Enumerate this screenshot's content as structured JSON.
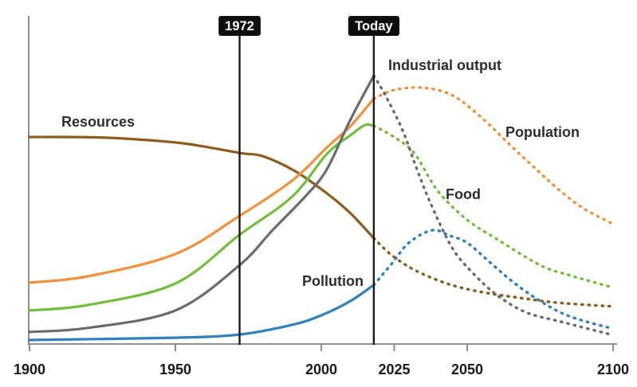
{
  "colors": {
    "axis": "#8C8D8F",
    "event_line": "#1A1A1A",
    "event_box": "#0D0D0D",
    "event_text": "#FFFFFF",
    "label_text": "#2E2E2E",
    "tick_text": "#1A1A1A"
  },
  "chart_data": {
    "type": "line",
    "title": "",
    "xlabel": "",
    "ylabel": "",
    "x_range": [
      1900,
      2100
    ],
    "x_ticks": [
      1900,
      1950,
      2000,
      2025,
      2050,
      2100
    ],
    "y_range": [
      0,
      100
    ],
    "y_ticks": [],
    "grid": false,
    "legend_position": "inline-labels",
    "line_style_note": "solid before Today marker, dotted projection after",
    "events": [
      {
        "label": "1972",
        "year": 1972
      },
      {
        "label": "Today",
        "year": 2018
      }
    ],
    "series": [
      {
        "id": "resources",
        "name": "Resources",
        "color": "#8D5D1E",
        "solid": [
          [
            1900,
            72.2
          ],
          [
            1915,
            72.2
          ],
          [
            1930,
            71.8
          ],
          [
            1950,
            70.3
          ],
          [
            1962,
            68.5
          ],
          [
            1973,
            66.5
          ],
          [
            1980,
            65.5
          ],
          [
            1991,
            60.3
          ],
          [
            2002,
            52.5
          ],
          [
            2010,
            45.6
          ],
          [
            2018,
            36.9
          ]
        ],
        "dashed": [
          [
            2018,
            36.9
          ],
          [
            2024,
            31.1
          ],
          [
            2032,
            25.8
          ],
          [
            2043,
            21.1
          ],
          [
            2055,
            18.1
          ],
          [
            2070,
            15.8
          ],
          [
            2081,
            14.4
          ],
          [
            2100,
            13.1
          ]
        ]
      },
      {
        "id": "population",
        "name": "Population",
        "color": "#F0913B",
        "solid": [
          [
            1900,
            21.4
          ],
          [
            1920,
            23.6
          ],
          [
            1950,
            31.4
          ],
          [
            1972,
            44.7
          ],
          [
            1990,
            57.0
          ],
          [
            2002,
            68.6
          ],
          [
            2010,
            76.0
          ],
          [
            2018,
            85.6
          ]
        ],
        "dashed": [
          [
            2018,
            85.6
          ],
          [
            2025,
            88.6
          ],
          [
            2035,
            89.4
          ],
          [
            2045,
            86.7
          ],
          [
            2055,
            78.9
          ],
          [
            2067,
            67.2
          ],
          [
            2075,
            59.7
          ],
          [
            2082,
            53.3
          ],
          [
            2090,
            47.2
          ],
          [
            2100,
            41.9
          ]
        ]
      },
      {
        "id": "food",
        "name": "Food",
        "color": "#70BE3C",
        "solid": [
          [
            1900,
            11.7
          ],
          [
            1920,
            13.6
          ],
          [
            1950,
            21.1
          ],
          [
            1972,
            38.1
          ],
          [
            1990,
            51.4
          ],
          [
            2002,
            66.4
          ],
          [
            2010,
            72.8
          ],
          [
            2015,
            76.4
          ],
          [
            2018,
            76.1
          ]
        ],
        "dashed": [
          [
            2018,
            76.1
          ],
          [
            2025,
            72.2
          ],
          [
            2032,
            66.4
          ],
          [
            2040,
            53.3
          ],
          [
            2050,
            43.3
          ],
          [
            2060,
            36.7
          ],
          [
            2075,
            27.5
          ],
          [
            2085,
            24.0
          ],
          [
            2100,
            19.7
          ]
        ]
      },
      {
        "id": "industrial-output",
        "name": "Industrial output",
        "color": "#6A6B6D",
        "solid": [
          [
            1900,
            4.2
          ],
          [
            1920,
            5.6
          ],
          [
            1950,
            11.7
          ],
          [
            1972,
            27.5
          ],
          [
            1983,
            39.4
          ],
          [
            1995,
            52.0
          ],
          [
            2002,
            61.1
          ],
          [
            2010,
            78.3
          ],
          [
            2018,
            93.6
          ]
        ],
        "dashed": [
          [
            2018,
            93.6
          ],
          [
            2022,
            86.7
          ],
          [
            2028,
            74.2
          ],
          [
            2033,
            60.3
          ],
          [
            2038,
            47.8
          ],
          [
            2045,
            33.3
          ],
          [
            2052,
            24.7
          ],
          [
            2060,
            17.2
          ],
          [
            2070,
            11.1
          ],
          [
            2082,
            7.8
          ],
          [
            2100,
            3.1
          ]
        ]
      },
      {
        "id": "pollution",
        "name": "Pollution",
        "color": "#2F80BD",
        "solid": [
          [
            1900,
            1.4
          ],
          [
            1950,
            2.2
          ],
          [
            1972,
            3.3
          ],
          [
            1990,
            6.7
          ],
          [
            2000,
            10.0
          ],
          [
            2010,
            15.0
          ],
          [
            2018,
            20.6
          ]
        ],
        "dashed": [
          [
            2018,
            20.6
          ],
          [
            2024,
            27.8
          ],
          [
            2030,
            35.3
          ],
          [
            2038,
            39.7
          ],
          [
            2044,
            37.8
          ],
          [
            2050,
            35.3
          ],
          [
            2058,
            28.3
          ],
          [
            2066,
            21.4
          ],
          [
            2075,
            15.0
          ],
          [
            2085,
            9.7
          ],
          [
            2100,
            5.3
          ]
        ]
      }
    ]
  }
}
